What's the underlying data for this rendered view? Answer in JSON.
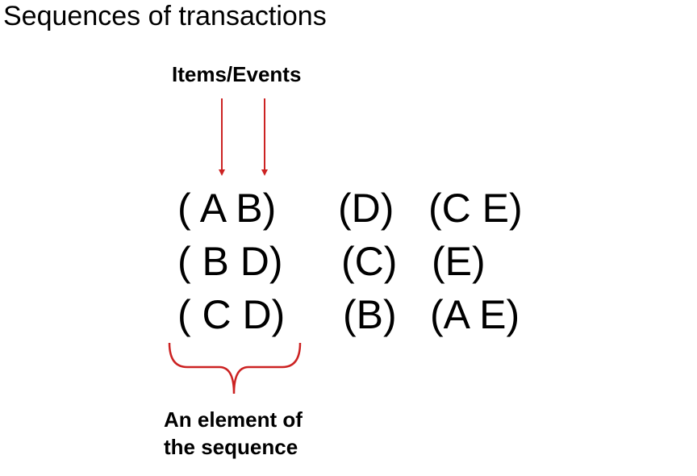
{
  "title": "Sequences of transactions",
  "labels": {
    "items_events": "Items/Events",
    "element_line1": "An element of",
    "element_line2": "the sequence"
  },
  "sequences": [
    [
      "( A B)",
      "(D)",
      "(C E)"
    ],
    [
      "( B D)",
      "(C)",
      "(E)"
    ],
    [
      "( C D)",
      "(B)",
      "(A E)"
    ]
  ],
  "colors": {
    "arrow": "#cc2222",
    "brace": "#cc2222",
    "text": "#000000"
  },
  "icons": [
    "down-arrow-icon",
    "curly-brace-icon"
  ]
}
